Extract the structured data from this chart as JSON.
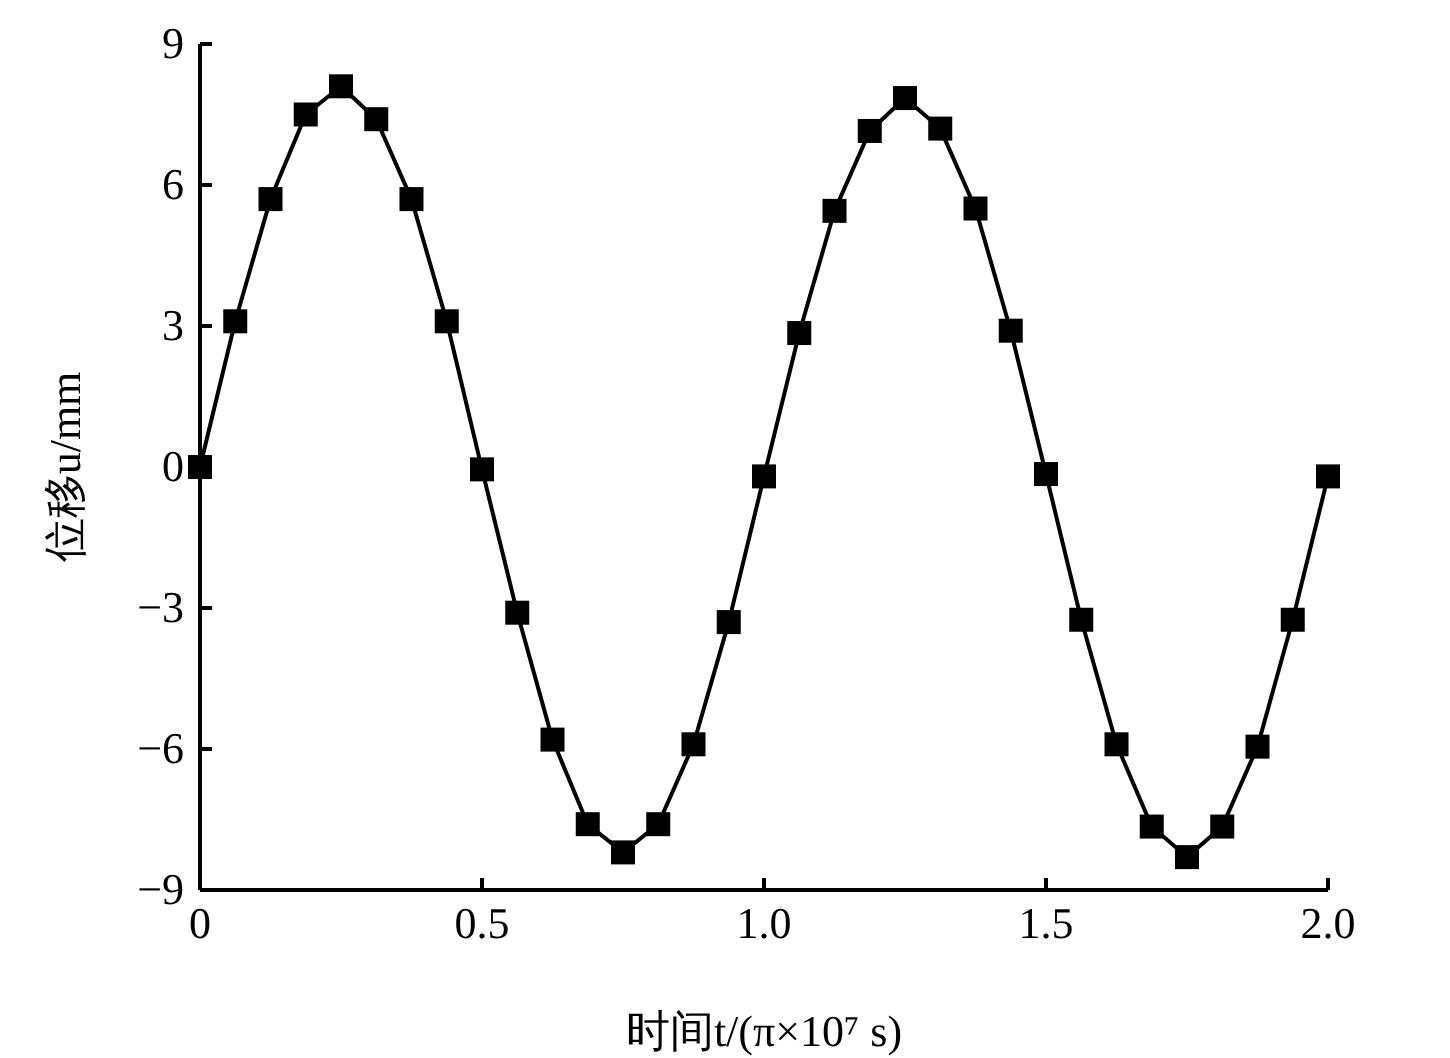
{
  "chart_data": {
    "type": "line",
    "xlabel": "时间t/(π×10⁷ s)",
    "ylabel": "位移u/mm",
    "x": [
      0,
      0.0625,
      0.125,
      0.1875,
      0.25,
      0.3125,
      0.375,
      0.4375,
      0.5,
      0.5625,
      0.625,
      0.6875,
      0.75,
      0.8125,
      0.875,
      0.9375,
      1.0,
      1.0625,
      1.125,
      1.1875,
      1.25,
      1.3125,
      1.375,
      1.4375,
      1.5,
      1.5625,
      1.625,
      1.6875,
      1.75,
      1.8125,
      1.875,
      1.9375,
      2.0
    ],
    "series": [
      {
        "color": "#000000",
        "values": [
          0,
          3.1,
          5.7,
          7.5,
          8.1,
          7.4,
          5.7,
          3.1,
          -0.05,
          -3.1,
          -5.8,
          -7.6,
          -8.2,
          -7.6,
          -5.9,
          -3.3,
          -0.2,
          2.85,
          5.45,
          7.15,
          7.85,
          7.2,
          5.5,
          2.9,
          -0.15,
          -3.25,
          -5.9,
          -7.65,
          -8.3,
          -7.65,
          -5.95,
          -3.25,
          -0.2
        ]
      }
    ],
    "xlim": [
      0,
      2
    ],
    "ylim": [
      -9,
      9
    ],
    "xticks": [
      0,
      0.5,
      {
        "value": 1,
        "label": "1.0"
      },
      1.5,
      {
        "value": 2,
        "label": "2.0"
      }
    ],
    "yticks": [
      {
        "value": -9,
        "label": "−9"
      },
      {
        "value": -6,
        "label": "−6"
      },
      {
        "value": -3,
        "label": "−3"
      },
      0,
      3,
      6,
      9
    ],
    "marker": "square",
    "line_style": "solid"
  }
}
